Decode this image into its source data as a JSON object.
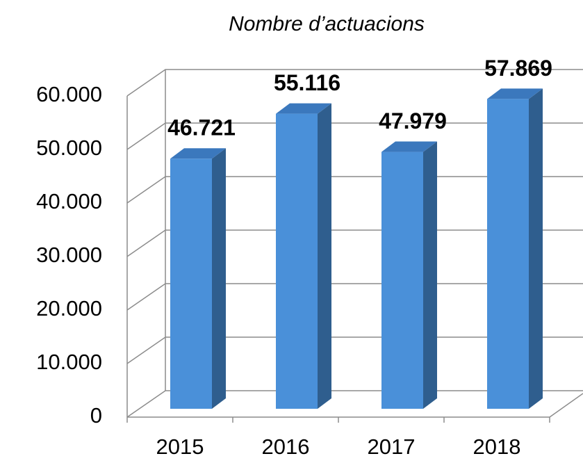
{
  "chart_data": {
    "type": "bar3d",
    "title": "Nombre d’actuacions",
    "categories": [
      "2015",
      "2016",
      "2017",
      "2018"
    ],
    "values": [
      46721,
      55116,
      47979,
      57869
    ],
    "value_labels": [
      "46.721",
      "55.116",
      "47.979",
      "57.869"
    ],
    "color": "#4a90d9",
    "ylim": [
      0,
      60000
    ],
    "yticks": [
      0,
      {
        "value": 10000,
        "label": "10.000"
      },
      {
        "value": 20000,
        "label": "20.000"
      },
      {
        "value": 30000,
        "label": "30.000"
      },
      {
        "value": 40000,
        "label": "40.000"
      },
      {
        "value": 50000,
        "label": "50.000"
      },
      {
        "value": 60000,
        "label": "60.000"
      }
    ],
    "grid": true
  }
}
